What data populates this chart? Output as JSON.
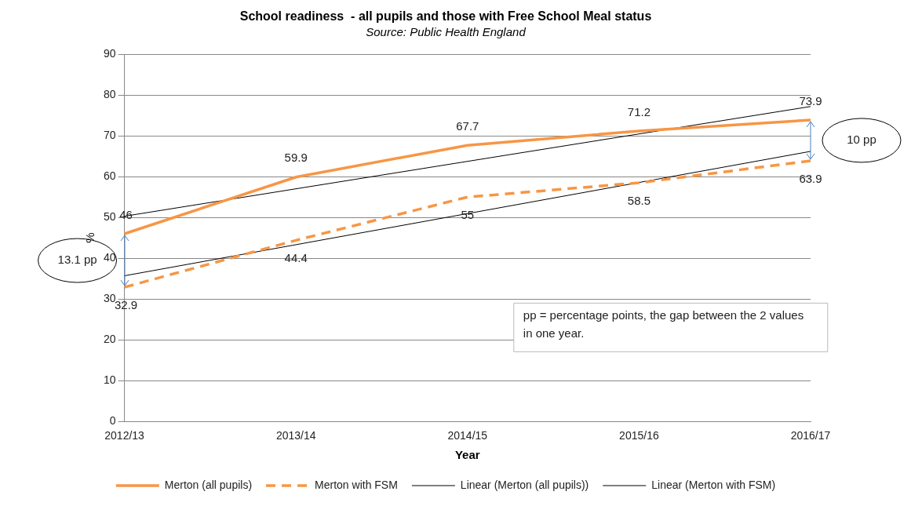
{
  "chart_data": {
    "type": "line",
    "title": "School readiness  - all pupils and those with Free School Meal status",
    "subtitle": "Source: Public Health England",
    "xlabel": "Year",
    "ylabel": "%",
    "categories": [
      "2012/13",
      "2013/14",
      "2014/15",
      "2015/16",
      "2016/17"
    ],
    "series": [
      {
        "name": "Merton (all pupils)",
        "color": "#f79646",
        "values": [
          46,
          59.9,
          67.7,
          71.2,
          73.9
        ],
        "value_labels": [
          "46",
          "59.9",
          "67.7",
          "71.2",
          "73.9"
        ],
        "line_style": "solid"
      },
      {
        "name": "Merton with FSM",
        "color": "#f79646",
        "values": [
          32.9,
          44.4,
          55,
          58.5,
          63.9
        ],
        "value_labels": [
          "32.9",
          "44.4",
          "55",
          "58.5",
          "63.9"
        ],
        "line_style": "dashed"
      },
      {
        "name": "Linear (Merton (all pupils))",
        "color": "#000000",
        "values": [
          50.3,
          null,
          null,
          null,
          77.2
        ],
        "line_style": "solid"
      },
      {
        "name": "Linear (Merton with FSM)",
        "color": "#000000",
        "values": [
          35.7,
          null,
          null,
          null,
          66.2
        ],
        "line_style": "solid"
      }
    ],
    "ylim": [
      0,
      90
    ],
    "yticks": [
      0,
      10,
      20,
      30,
      40,
      50,
      60,
      70,
      80,
      90
    ],
    "grid": "y",
    "legend": "bottom",
    "marker": "none",
    "annotations": [
      "13.1 pp",
      "10 pp",
      "pp = percentage points, the gap between the 2 values in one year."
    ]
  }
}
